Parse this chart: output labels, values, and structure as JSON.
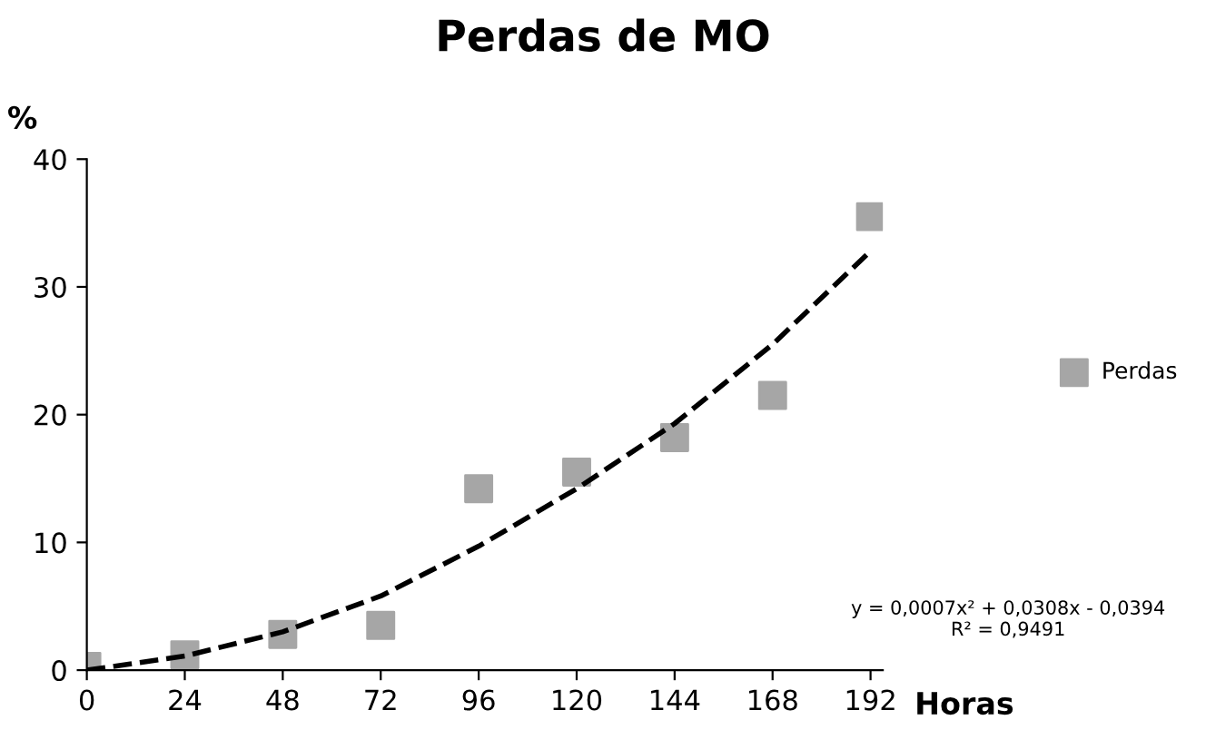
{
  "chart_data": {
    "type": "scatter",
    "title": "Perdas de MO",
    "xlabel": "Horas",
    "ylabel": "%",
    "x": [
      0,
      24,
      48,
      72,
      96,
      120,
      144,
      168,
      192
    ],
    "series": [
      {
        "name": "Perdas",
        "color": "#a6a6a6",
        "values": [
          0.3,
          1.2,
          2.8,
          3.5,
          14.2,
          15.5,
          18.2,
          21.5,
          35.5
        ],
        "marker": "square"
      },
      {
        "type": "line",
        "color": "#000000",
        "line_style": "dashed",
        "marker": "none",
        "x": [
          0,
          24,
          48,
          72,
          96,
          120,
          144,
          168,
          192
        ],
        "values": [
          0,
          1.1,
          3,
          5.8,
          9.7,
          14.2,
          19.3,
          25.5,
          32.8
        ]
      }
    ],
    "xlim": [
      0,
      195
    ],
    "xticks": [
      0,
      24,
      48,
      72,
      96,
      120,
      144,
      168,
      192
    ],
    "ylim": [
      0,
      40
    ],
    "yticks": [
      0,
      10,
      20,
      30,
      40
    ],
    "grid": false,
    "legend": "right",
    "annotations": [
      "y = 0,0007x² + 0,0308x - 0,0394\nR² = 0,9491"
    ]
  }
}
